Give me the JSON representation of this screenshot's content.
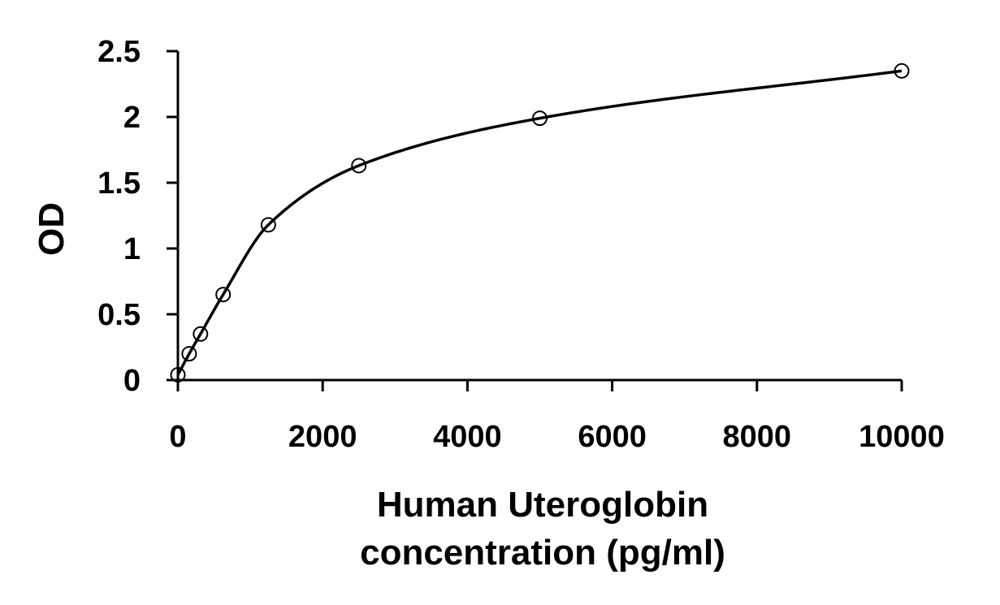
{
  "chart_data": {
    "type": "scatter",
    "title": "",
    "xlabel": "Human Uteroglobin",
    "xlabel_line2": "concentration (pg/ml)",
    "ylabel": "OD",
    "xlim": [
      0,
      10000
    ],
    "ylim": [
      0,
      2.5
    ],
    "x_ticks": [
      0,
      2000,
      4000,
      6000,
      8000,
      10000
    ],
    "y_ticks": [
      0,
      0.5,
      1,
      1.5,
      2,
      2.5
    ],
    "x_tick_labels": [
      "0",
      "2000",
      "4000",
      "6000",
      "8000",
      "10000"
    ],
    "y_tick_labels": [
      "0",
      "0.5",
      "1",
      "1.5",
      "2",
      "2.5"
    ],
    "grid": false,
    "legend": "none",
    "series": [
      {
        "x": [
          0,
          156,
          312,
          625,
          1250,
          2500,
          5000,
          10000
        ],
        "y": [
          0.04,
          0.2,
          0.35,
          0.65,
          1.18,
          1.63,
          1.99,
          2.35
        ],
        "marker": "open-circle",
        "fit_line": "smooth"
      }
    ],
    "colors": {
      "axis": "#000000",
      "marker": "#000000",
      "line": "#000000"
    }
  }
}
